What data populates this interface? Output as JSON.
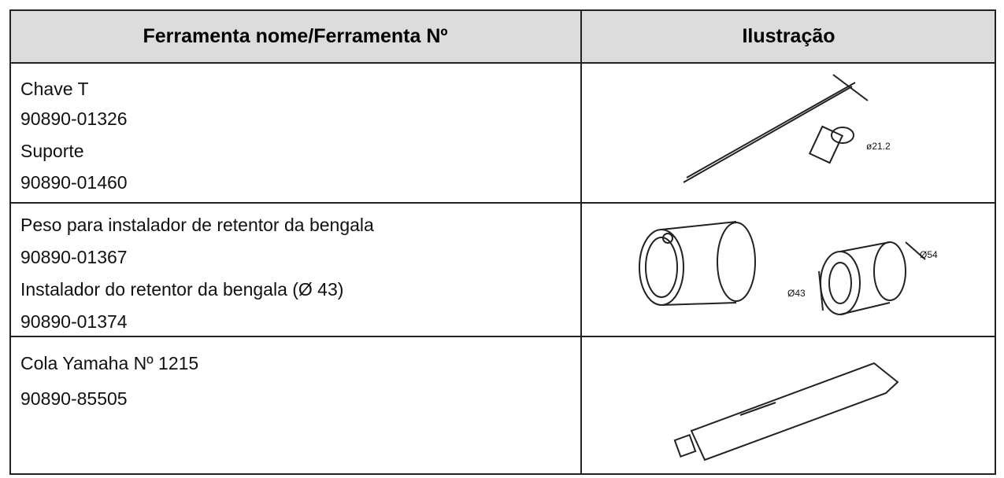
{
  "table": {
    "header": [
      "Ferramenta nome/Ferramenta Nº",
      "Ilustração"
    ],
    "rows": [
      {
        "lines": [
          "Chave T",
          "90890-01326",
          "Suporte",
          "90890-01460"
        ],
        "illustration_labels": [
          "ø21.2"
        ]
      },
      {
        "lines": [
          "Peso para instalador de retentor da bengala",
          "90890-01367",
          "Instalador do retentor da bengala (Ø 43)",
          "90890-01374"
        ],
        "illustration_labels": [
          "Ø54",
          "Ø43"
        ]
      },
      {
        "lines": [
          "Cola Yamaha Nº 1215",
          "90890-85505"
        ],
        "illustration_labels": []
      }
    ]
  }
}
